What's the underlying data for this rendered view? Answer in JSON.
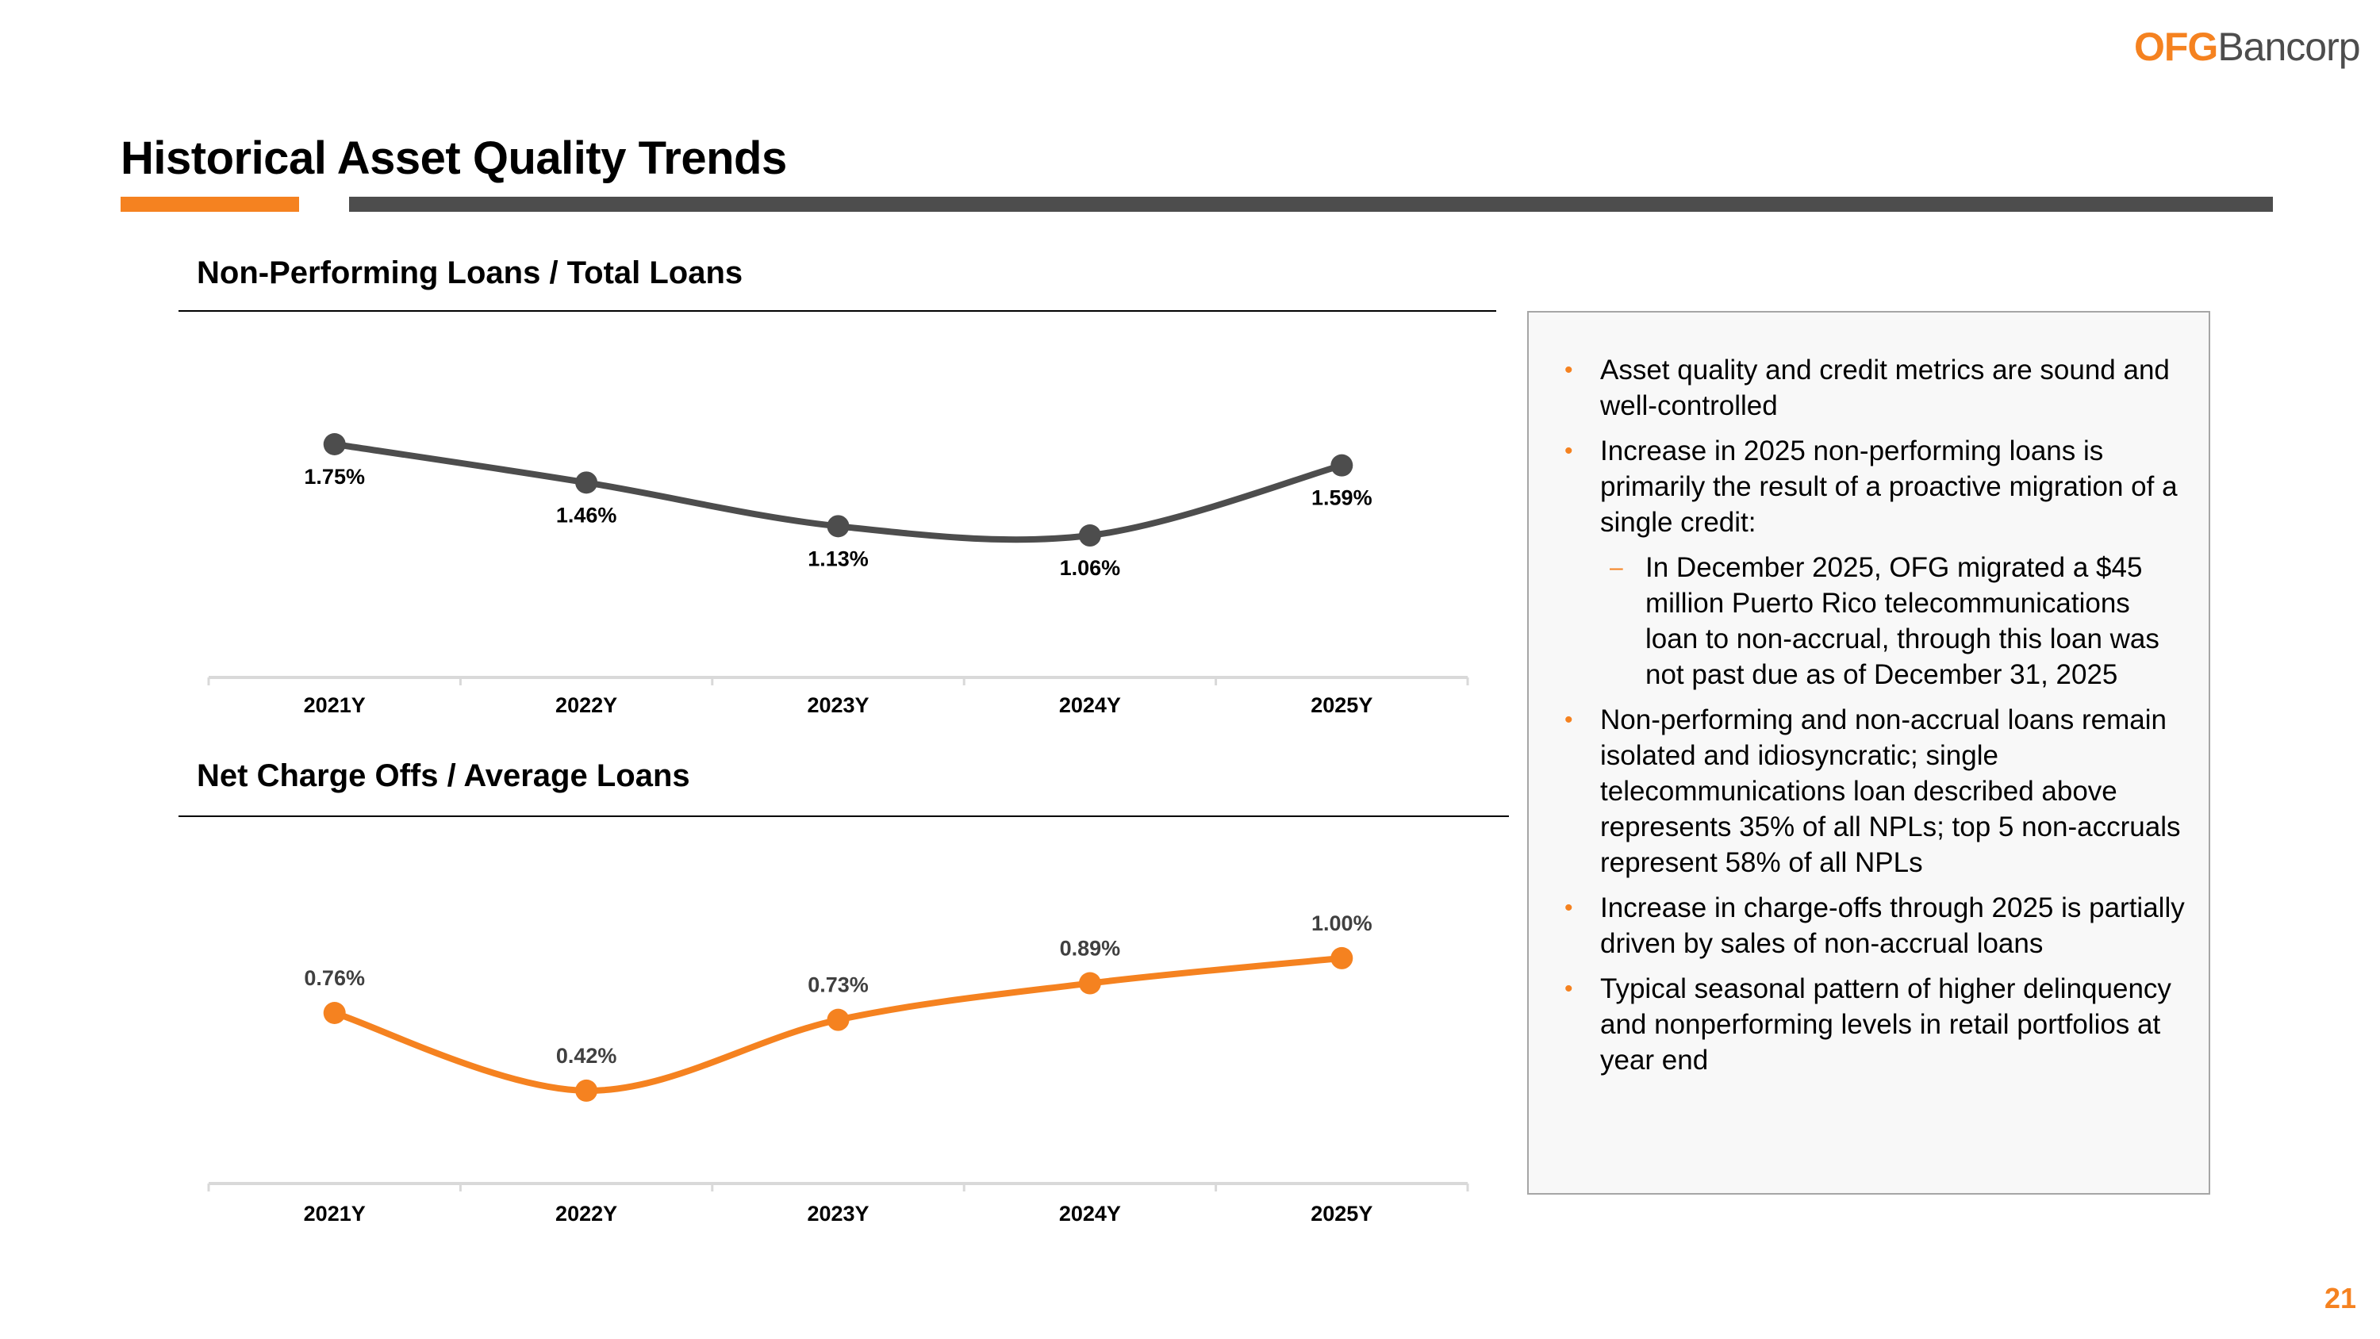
{
  "logo": {
    "part1": "OFG",
    "part2": "Bancorp"
  },
  "page_title": "Historical Asset Quality Trends",
  "page_number": "21",
  "colors": {
    "accent": "#f58220",
    "dark": "#4d4d4d"
  },
  "chart_data": [
    {
      "type": "line",
      "title": "Non-Performing Loans / Total Loans",
      "categories": [
        "2021Y",
        "2022Y",
        "2023Y",
        "2024Y",
        "2025Y"
      ],
      "values": [
        1.75,
        1.46,
        1.13,
        1.06,
        1.59
      ],
      "labels": [
        "1.75%",
        "1.46%",
        "1.13%",
        "1.06%",
        "1.59%"
      ],
      "color": "#4d4d4d",
      "label_position": "below",
      "grid": false
    },
    {
      "type": "line",
      "title": "Net Charge Offs / Average Loans",
      "categories": [
        "2021Y",
        "2022Y",
        "2023Y",
        "2024Y",
        "2025Y"
      ],
      "values": [
        0.76,
        0.42,
        0.73,
        0.89,
        1.0
      ],
      "labels": [
        "0.76%",
        "0.42%",
        "0.73%",
        "0.89%",
        "1.00%"
      ],
      "color": "#f58220",
      "label_position": "above",
      "grid": false
    }
  ],
  "bullets": [
    {
      "text": "Asset quality and credit metrics are sound and well-controlled",
      "level": 1
    },
    {
      "text": "Increase in 2025 non-performing loans is primarily the result of a proactive migration of a single credit:",
      "level": 1
    },
    {
      "text": "In December 2025, OFG migrated a $45 million Puerto Rico telecommunications loan to non-accrual, through this loan was not past due as of December 31, 2025",
      "level": 2
    },
    {
      "text": "Non-performing and non-accrual loans remain isolated and idiosyncratic; single telecommunications loan described above represents 35% of all NPLs; top 5 non-accruals represent 58% of all NPLs",
      "level": 1
    },
    {
      "text": "Increase in charge-offs through 2025 is partially driven by sales of non-accrual loans",
      "level": 1
    },
    {
      "text": "Typical seasonal pattern of higher delinquency and nonperforming levels in retail portfolios at year end",
      "level": 1
    }
  ],
  "bullet_glyphs": {
    "level1": "•",
    "level2": "–"
  }
}
